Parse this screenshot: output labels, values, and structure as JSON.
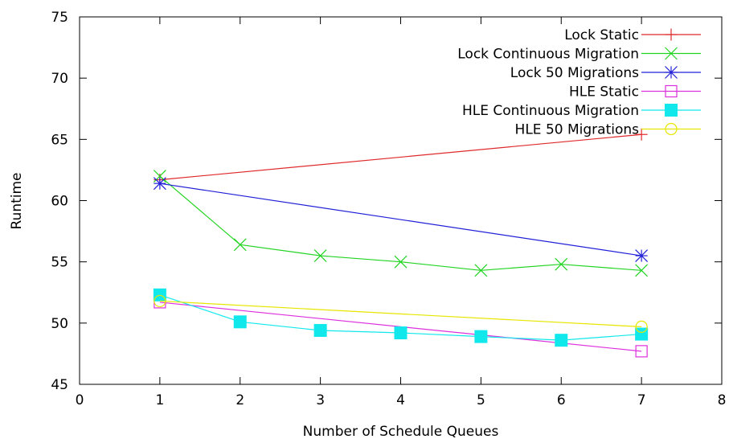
{
  "chart_data": {
    "type": "line",
    "title": "",
    "xlabel": "Number of Schedule Queues",
    "ylabel": "Runtime",
    "xlim": [
      0,
      8
    ],
    "ylim": [
      45,
      75
    ],
    "xticks": [
      0,
      1,
      2,
      3,
      4,
      5,
      6,
      7,
      8
    ],
    "yticks": [
      45,
      50,
      55,
      60,
      65,
      70,
      75
    ],
    "grid": false,
    "legend_position": "top-right",
    "series": [
      {
        "name": "Lock Static",
        "color": "#e0292b",
        "marker": "plus",
        "x": [
          1,
          7
        ],
        "y": [
          61.7,
          65.4
        ]
      },
      {
        "name": "Lock Continuous Migration",
        "color": "#22d422",
        "marker": "cross",
        "x": [
          1,
          2,
          3,
          4,
          5,
          6,
          7
        ],
        "y": [
          62.0,
          56.4,
          55.5,
          55.0,
          54.3,
          54.8,
          54.3
        ]
      },
      {
        "name": "Lock 50 Migrations",
        "color": "#2020d8",
        "marker": "star",
        "x": [
          1,
          7
        ],
        "y": [
          61.4,
          55.5
        ]
      },
      {
        "name": "HLE Static",
        "color": "#dd30dd",
        "marker": "square-open",
        "x": [
          1,
          7
        ],
        "y": [
          51.7,
          47.7
        ]
      },
      {
        "name": "HLE Continuous Migration",
        "color": "#11e8ec",
        "marker": "square-filled",
        "x": [
          1,
          2,
          3,
          4,
          5,
          6,
          7
        ],
        "y": [
          52.3,
          50.1,
          49.4,
          49.2,
          48.9,
          48.6,
          49.1
        ]
      },
      {
        "name": "HLE 50 Migrations",
        "color": "#e6e600",
        "marker": "circle-open",
        "x": [
          1,
          7
        ],
        "y": [
          51.8,
          49.7
        ]
      }
    ]
  }
}
